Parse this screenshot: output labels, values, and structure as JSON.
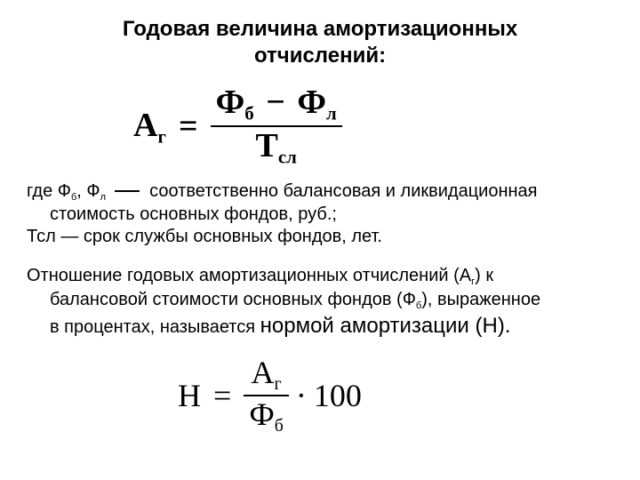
{
  "title_l1": "Годовая величина амортизационных",
  "title_l2": "отчислений:",
  "formula1": {
    "A": "А",
    "A_sub": "г",
    "eq": "=",
    "num_l": "Ф",
    "num_l_sub": "б",
    "minus": "−",
    "num_r": "Ф",
    "num_r_sub": "л",
    "den": "Т",
    "den_sub": "сл"
  },
  "defs": {
    "l1a": "где Ф",
    "l1a_sub": "б",
    "l1b": ", Ф",
    "l1b_sub": "л",
    "l1c": "соответственно балансовая и ликвидационная",
    "l2": "стоимость основных фондов, руб.;",
    "l3": "Тсл — срок службы основных фондов, лет."
  },
  "para": {
    "p1a": "Отношение годовых амортизационных отчислений (А",
    "p1a_sub": "г",
    "p1b": ") к",
    "p2a": "балансовой стоимости основных фондов (Ф",
    "p2a_sub": "б",
    "p2b": "), выраженное",
    "p3a": "в процентах, называется ",
    "p3_norm": "нормой амортизации (Н).",
    "p3b": ""
  },
  "formula2": {
    "H": "Н",
    "eq": "=",
    "num": "А",
    "num_sub": "г",
    "den": "Ф",
    "den_sub": "б",
    "mul": "·",
    "hundred": "100"
  }
}
